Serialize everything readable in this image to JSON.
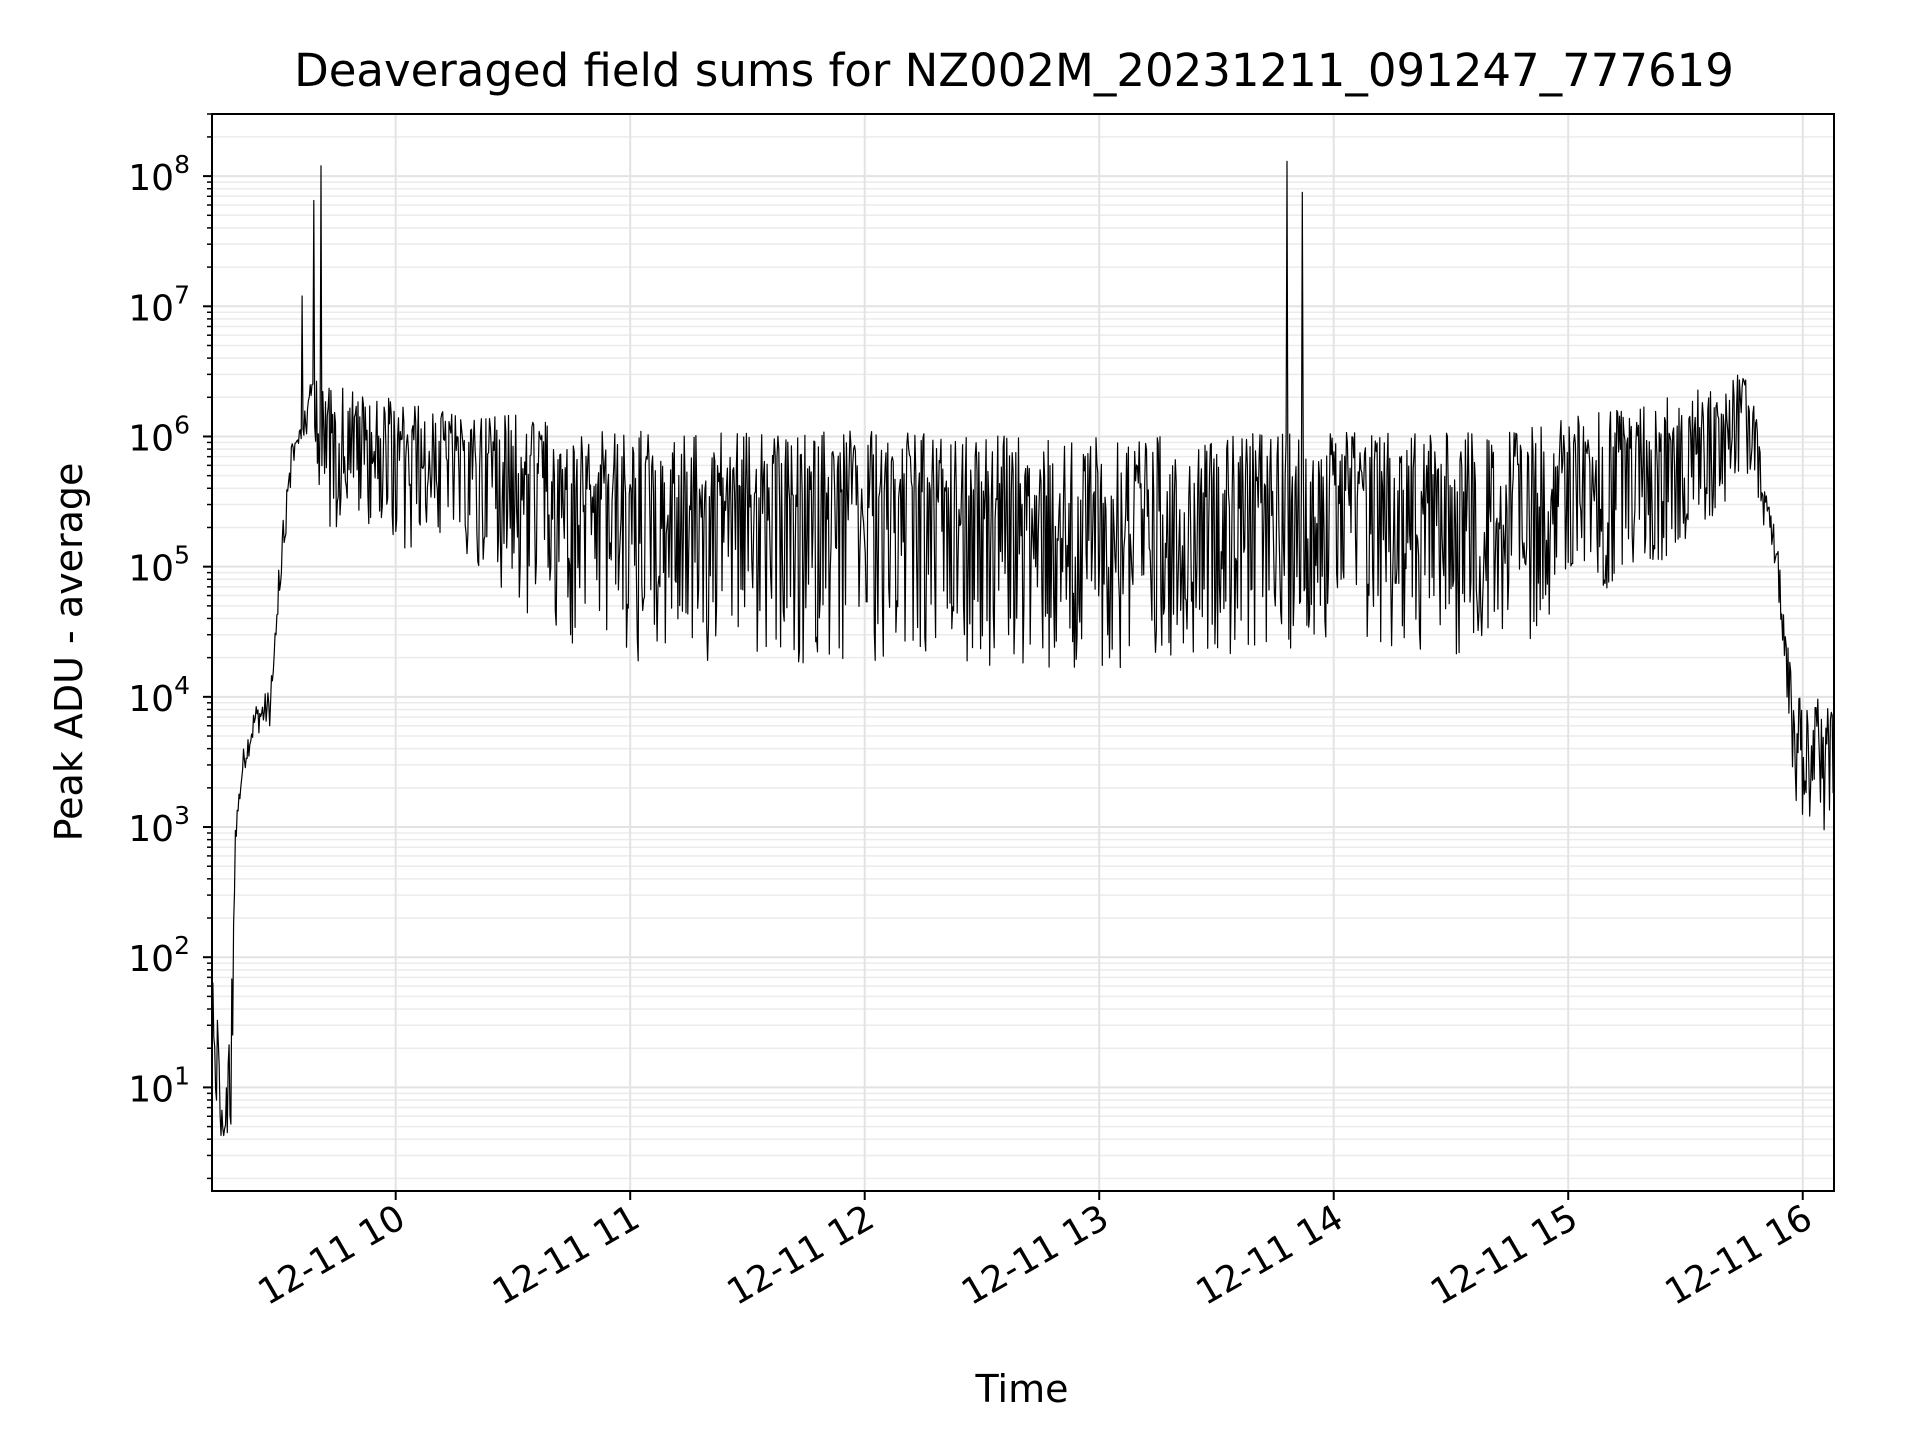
{
  "chart_data": {
    "type": "line",
    "title": "Deaveraged field sums for NZ002M_20231211_091247_777619",
    "xlabel": "Time",
    "ylabel": "Peak ADU - average",
    "yscale": "log",
    "grid": "on (major and minor)",
    "x_tick_labels": [
      "12-11 10",
      "12-11 11",
      "12-11 12",
      "12-11 13",
      "12-11 14",
      "12-11 15",
      "12-11 16"
    ],
    "x_tick_times": [
      "2023-12-11T10:00",
      "2023-12-11T11:00",
      "2023-12-11T12:00",
      "2023-12-11T13:00",
      "2023-12-11T14:00",
      "2023-12-11T15:00",
      "2023-12-11T16:00"
    ],
    "xlim": [
      "2023-12-11T09:13",
      "2023-12-11T16:08"
    ],
    "ylim": [
      1.6,
      300000000
    ],
    "y_tick_labels": [
      {
        "base": "10",
        "exp": "1",
        "value": 10
      },
      {
        "base": "10",
        "exp": "2",
        "value": 100
      },
      {
        "base": "10",
        "exp": "3",
        "value": 1000
      },
      {
        "base": "10",
        "exp": "4",
        "value": 10000
      },
      {
        "base": "10",
        "exp": "5",
        "value": 100000
      },
      {
        "base": "10",
        "exp": "6",
        "value": 1000000
      },
      {
        "base": "10",
        "exp": "7",
        "value": 10000000
      },
      {
        "base": "10",
        "exp": "8",
        "value": 100000000
      }
    ],
    "series": [
      {
        "color": "#000000",
        "envelope": [
          {
            "t": "2023-12-11T09:13",
            "low": 60,
            "high": 70
          },
          {
            "t": "2023-12-11T09:14",
            "low": 4,
            "high": 60
          },
          {
            "t": "2023-12-11T09:16",
            "low": 4,
            "high": 5
          },
          {
            "t": "2023-12-11T09:18",
            "low": 4,
            "high": 60
          },
          {
            "t": "2023-12-11T09:19",
            "low": 700,
            "high": 1200
          },
          {
            "t": "2023-12-11T09:21",
            "low": 2500,
            "high": 4000
          },
          {
            "t": "2023-12-11T09:24",
            "low": 5000,
            "high": 9000
          },
          {
            "t": "2023-12-11T09:28",
            "low": 6000,
            "high": 12000
          },
          {
            "t": "2023-12-11T09:30",
            "low": 50000,
            "high": 100000
          },
          {
            "t": "2023-12-11T09:33",
            "low": 300000,
            "high": 900000
          },
          {
            "t": "2023-12-11T09:36",
            "low": 900000,
            "high": 1300000
          },
          {
            "t": "2023-12-11T09:39",
            "low": 1300000,
            "high": 3500000
          },
          {
            "t": "2023-12-11T09:42",
            "low": 70000,
            "high": 2500000
          },
          {
            "t": "2023-12-11T09:48",
            "low": 300000,
            "high": 2500000
          },
          {
            "t": "2023-12-11T09:57",
            "low": 100000,
            "high": 2000000
          },
          {
            "t": "2023-12-11T10:06",
            "low": 150000,
            "high": 1800000
          },
          {
            "t": "2023-12-11T10:15",
            "low": 150000,
            "high": 1500000
          },
          {
            "t": "2023-12-11T10:30",
            "low": 40000,
            "high": 1500000
          },
          {
            "t": "2023-12-11T10:45",
            "low": 25000,
            "high": 1200000
          },
          {
            "t": "2023-12-11T11:00",
            "low": 18000,
            "high": 1100000
          },
          {
            "t": "2023-12-11T12:00",
            "low": 16000,
            "high": 1100000
          },
          {
            "t": "2023-12-11T13:00",
            "low": 16000,
            "high": 1000000
          },
          {
            "t": "2023-12-11T14:00",
            "low": 25000,
            "high": 1100000
          },
          {
            "t": "2023-12-11T14:45",
            "low": 18000,
            "high": 1100000
          },
          {
            "t": "2023-12-11T15:00",
            "low": 50000,
            "high": 1400000
          },
          {
            "t": "2023-12-11T15:15",
            "low": 80000,
            "high": 1800000
          },
          {
            "t": "2023-12-11T15:30",
            "low": 100000,
            "high": 2200000
          },
          {
            "t": "2023-12-11T15:45",
            "low": 500000,
            "high": 3200000
          },
          {
            "t": "2023-12-11T15:48",
            "low": 400000,
            "high": 2000000
          },
          {
            "t": "2023-12-11T15:50",
            "low": 150000,
            "high": 450000
          },
          {
            "t": "2023-12-11T15:53",
            "low": 100000,
            "high": 200000
          },
          {
            "t": "2023-12-11T15:55",
            "low": 20000,
            "high": 60000
          },
          {
            "t": "2023-12-11T15:57",
            "low": 1500,
            "high": 15000
          },
          {
            "t": "2023-12-11T16:08",
            "low": 500,
            "high": 8000
          }
        ],
        "spikes": [
          {
            "t": "2023-12-11T09:36",
            "value": 12000000
          },
          {
            "t": "2023-12-11T09:39",
            "value": 65000000
          },
          {
            "t": "2023-12-11T09:41",
            "value": 120000000
          },
          {
            "t": "2023-12-11T13:48",
            "value": 130000000
          },
          {
            "t": "2023-12-11T13:52",
            "value": 75000000
          }
        ]
      }
    ]
  }
}
